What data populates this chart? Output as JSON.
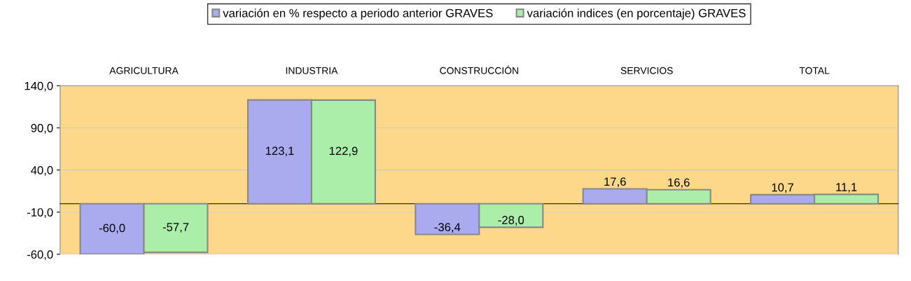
{
  "chart_data": {
    "type": "bar",
    "categories": [
      "AGRICULTURA",
      "INDUSTRIA",
      "CONSTRUCCIÓN",
      "SERVICIOS",
      "TOTAL"
    ],
    "series": [
      {
        "name": "variación en % respecto a periodo anterior GRAVES",
        "color": "#aaaaee",
        "values": [
          -60.0,
          123.1,
          -36.4,
          17.6,
          10.7
        ],
        "value_labels": [
          "-60,0",
          "123,1",
          "-36,4",
          "17,6",
          "10,7"
        ]
      },
      {
        "name": "variación indices (en porcentaje) GRAVES",
        "color": "#aaeeaa",
        "values": [
          -57.7,
          122.9,
          -28.0,
          16.6,
          11.1
        ],
        "value_labels": [
          "-57,7",
          "122,9",
          "-28,0",
          "16,6",
          "11,1"
        ]
      }
    ],
    "ylim": [
      -60,
      140
    ],
    "yticks": [
      {
        "value": -60,
        "label": "-60,0"
      },
      {
        "value": -10,
        "label": "-10,0"
      },
      {
        "value": 40,
        "label": "40,0"
      },
      {
        "value": 90,
        "label": "90,0"
      },
      {
        "value": 140,
        "label": "140,0"
      }
    ],
    "grid": "y",
    "legend": "top"
  }
}
